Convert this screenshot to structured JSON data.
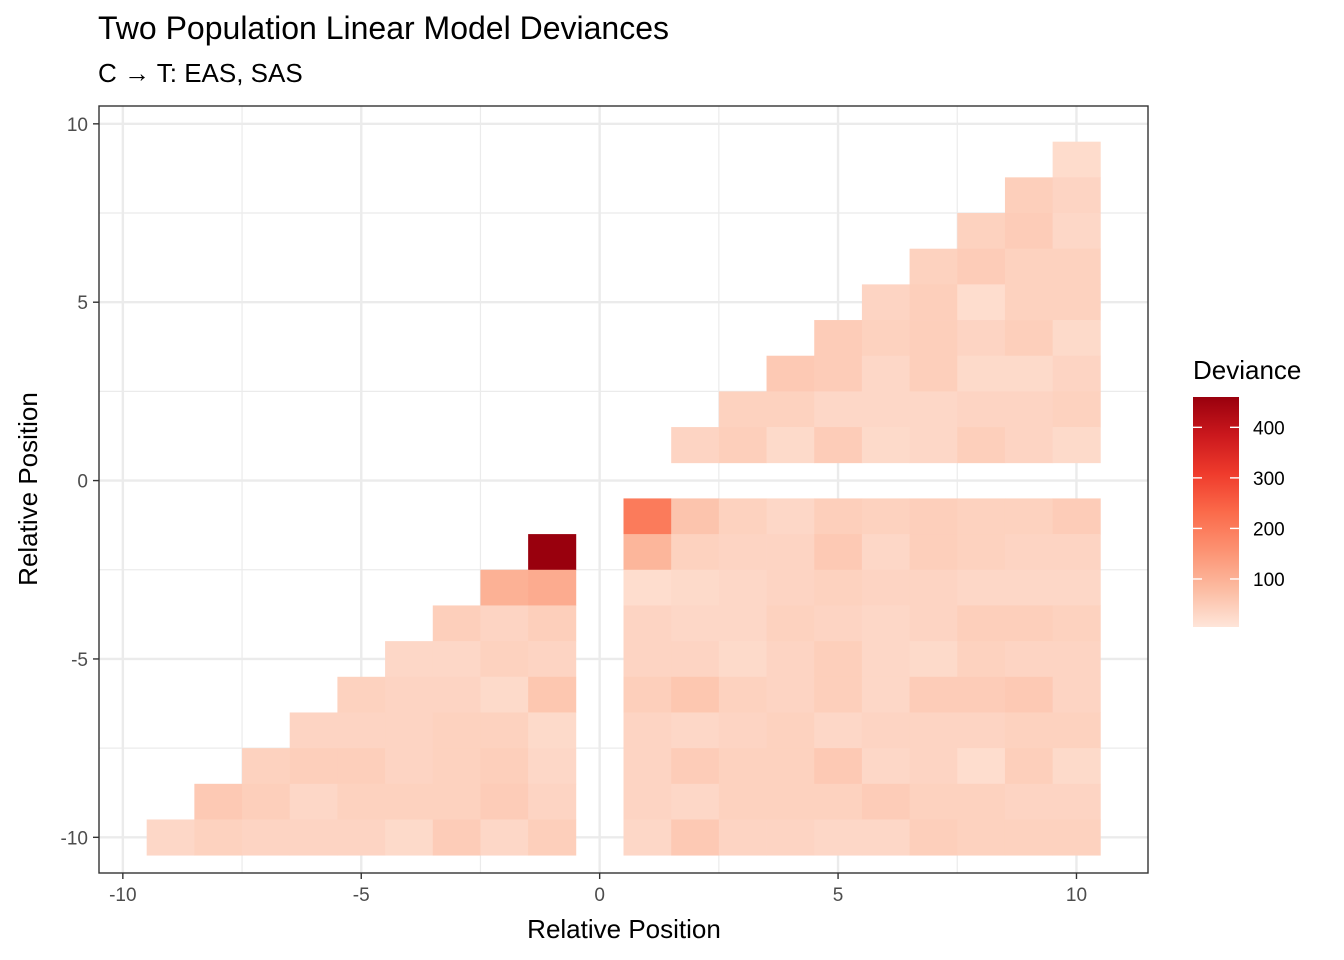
{
  "chart_data": {
    "type": "heatmap",
    "title": "Two Population Linear Model Deviances",
    "subtitle": "C → T: EAS, SAS",
    "xlabel": "Relative Position",
    "ylabel": "Relative Position",
    "xlim": [
      -10.5,
      11.5
    ],
    "ylim": [
      -11,
      10.5
    ],
    "x_ticks": [
      -10,
      -5,
      0,
      5,
      10
    ],
    "y_ticks": [
      -10,
      -5,
      0,
      5,
      10
    ],
    "x_tick_labels": [
      "-10",
      "-5",
      "0",
      "5",
      "10"
    ],
    "y_tick_labels": [
      "-10",
      "-5",
      "0",
      "5",
      "10"
    ],
    "grid": true,
    "legend": {
      "title": "Deviance",
      "placement": "right",
      "min": 5,
      "max": 460,
      "breaks": [
        100,
        200,
        300,
        400
      ],
      "break_labels": [
        "100",
        "200",
        "300",
        "400"
      ],
      "colors": [
        "#fee5d9",
        "#fcbba1",
        "#fc9272",
        "#fb6a4a",
        "#ef3b2c",
        "#cb181d",
        "#99000d"
      ]
    },
    "rows": [
      {
        "y": 9,
        "x_start": 10,
        "values": [
          22
        ]
      },
      {
        "y": 8,
        "x_start": 9,
        "values": [
          45,
          35
        ]
      },
      {
        "y": 7,
        "x_start": 8,
        "values": [
          40,
          50,
          30
        ]
      },
      {
        "y": 6,
        "x_start": 7,
        "values": [
          40,
          50,
          40,
          40
        ]
      },
      {
        "y": 5,
        "x_start": 6,
        "values": [
          35,
          45,
          20,
          40,
          40
        ]
      },
      {
        "y": 4,
        "x_start": 5,
        "values": [
          50,
          40,
          45,
          35,
          45,
          25
        ]
      },
      {
        "y": 3,
        "x_start": 4,
        "values": [
          55,
          50,
          30,
          45,
          25,
          25,
          35
        ]
      },
      {
        "y": 2,
        "x_start": 3,
        "values": [
          40,
          40,
          30,
          30,
          30,
          35,
          35,
          40
        ]
      },
      {
        "y": 1,
        "x_start": 2,
        "values": [
          35,
          45,
          25,
          50,
          25,
          30,
          45,
          35,
          25
        ]
      },
      {
        "y": -1,
        "x_start": 1,
        "values": [
          200,
          65,
          40,
          30,
          45,
          40,
          45,
          40,
          40,
          50
        ]
      },
      {
        "y": -2,
        "x_start": -1,
        "values": [
          460
        ]
      },
      {
        "y": -2,
        "x_start": 1,
        "values": [
          90,
          40,
          35,
          35,
          55,
          30,
          45,
          40,
          35,
          35
        ]
      },
      {
        "y": -3,
        "x_start": -2,
        "values": [
          100,
          110
        ]
      },
      {
        "y": -3,
        "x_start": 1,
        "values": [
          20,
          25,
          30,
          35,
          40,
          35,
          35,
          30,
          30,
          30
        ]
      },
      {
        "y": -4,
        "x_start": -3,
        "values": [
          45,
          35,
          45
        ]
      },
      {
        "y": -4,
        "x_start": 1,
        "values": [
          35,
          30,
          30,
          40,
          35,
          30,
          35,
          45,
          45,
          40
        ]
      },
      {
        "y": -5,
        "x_start": -4,
        "values": [
          30,
          30,
          40,
          35
        ]
      },
      {
        "y": -5,
        "x_start": 1,
        "values": [
          35,
          35,
          25,
          35,
          45,
          30,
          25,
          40,
          35,
          35
        ]
      },
      {
        "y": -6,
        "x_start": -5,
        "values": [
          40,
          35,
          35,
          25,
          60
        ]
      },
      {
        "y": -6,
        "x_start": 1,
        "values": [
          45,
          60,
          40,
          35,
          45,
          30,
          50,
          50,
          55,
          35
        ]
      },
      {
        "y": -7,
        "x_start": -6,
        "values": [
          35,
          35,
          35,
          40,
          40,
          25
        ]
      },
      {
        "y": -7,
        "x_start": 1,
        "values": [
          35,
          30,
          35,
          40,
          30,
          35,
          35,
          35,
          40,
          40
        ]
      },
      {
        "y": -8,
        "x_start": -7,
        "values": [
          40,
          45,
          45,
          35,
          40,
          45,
          30
        ]
      },
      {
        "y": -8,
        "x_start": 1,
        "values": [
          35,
          50,
          40,
          40,
          55,
          30,
          35,
          20,
          45,
          25
        ]
      },
      {
        "y": -9,
        "x_start": -8,
        "values": [
          55,
          45,
          30,
          40,
          40,
          40,
          50,
          35
        ]
      },
      {
        "y": -9,
        "x_start": 1,
        "values": [
          35,
          30,
          40,
          40,
          40,
          50,
          40,
          40,
          35,
          35
        ]
      },
      {
        "y": -10,
        "x_start": -9,
        "values": [
          30,
          40,
          35,
          35,
          35,
          25,
          50,
          30,
          45
        ]
      },
      {
        "y": -10,
        "x_start": 1,
        "values": [
          30,
          55,
          35,
          35,
          30,
          30,
          45,
          40,
          40,
          40
        ]
      }
    ]
  }
}
